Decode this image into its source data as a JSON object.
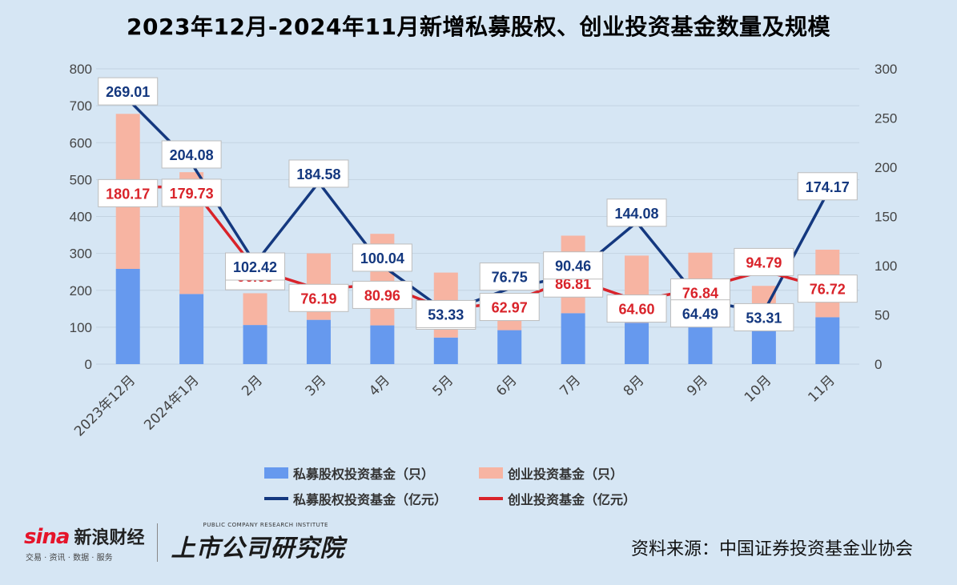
{
  "title": "2023年12月-2024年11月新增私募股权、创业投资基金数量及规模",
  "colors": {
    "background": "#d6e6f4",
    "pe_count": "#6699ee",
    "vc_count": "#f7b4a2",
    "pe_scale": "#14387f",
    "vc_scale": "#d9232a"
  },
  "chart_data": {
    "type": "bar",
    "stacked": true,
    "categories": [
      "2023年12月",
      "2024年1月",
      "2月",
      "3月",
      "4月",
      "5月",
      "6月",
      "7月",
      "8月",
      "9月",
      "10月",
      "11月"
    ],
    "y_left": {
      "min": 0,
      "max": 800,
      "ticks": [
        "0",
        "100",
        "200",
        "300",
        "400",
        "500",
        "600",
        "700",
        "800"
      ]
    },
    "y_right": {
      "min": 0,
      "max": 300,
      "ticks": [
        "0",
        "50",
        "100",
        "150",
        "200",
        "250",
        "300"
      ]
    },
    "grid": true,
    "legend_position": "bottom",
    "series": [
      {
        "name": "私募股权投资基金（只）",
        "kind": "bar",
        "axis": "left",
        "values": [
          258,
          190,
          106,
          120,
          105,
          72,
          92,
          138,
          112,
          102,
          90,
          127
        ]
      },
      {
        "name": "创业投资基金（只）",
        "kind": "bar",
        "axis": "left",
        "values": [
          420,
          330,
          86,
          180,
          248,
          176,
          100,
          210,
          182,
          200,
          122,
          183
        ]
      },
      {
        "name": "私募股权投资基金（亿元）",
        "kind": "line",
        "axis": "right",
        "values": [
          269.01,
          204.08,
          102.42,
          184.58,
          100.04,
          53.33,
          76.75,
          90.46,
          144.08,
          64.49,
          53.31,
          174.17
        ],
        "labels": [
          "269.01",
          "204.08",
          "102.42",
          "184.58",
          "100.04",
          "53.33",
          "76.75",
          "90.46",
          "144.08",
          "64.49",
          "53.31",
          "174.17"
        ]
      },
      {
        "name": "创业投资基金（亿元）",
        "kind": "line",
        "axis": "right",
        "values": [
          180.17,
          179.73,
          96.68,
          76.19,
          80.96,
          55.7,
          62.97,
          86.81,
          64.6,
          76.84,
          94.79,
          76.72
        ],
        "labels": [
          "180.17",
          "179.73",
          "96.68",
          "76.19",
          "80.96",
          "55.70",
          "62.97",
          "86.81",
          "64.60",
          "76.84",
          "94.79",
          "76.72"
        ]
      }
    ]
  },
  "brand": {
    "sina_word": "sina",
    "sina_name": "新浪财经",
    "sina_sub": "交易 · 资讯 · 数据 · 服务",
    "institute_en": "PUBLIC COMPANY RESEARCH INSTITUTE",
    "institute_cn": "上市公司研究院"
  },
  "source": "资料来源：中国证券投资基金业协会"
}
